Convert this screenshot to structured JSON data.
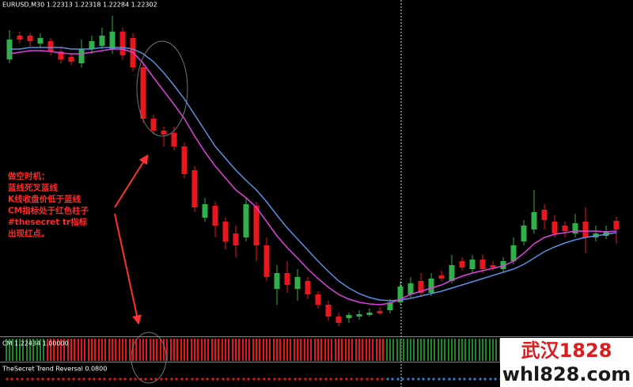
{
  "chart_data": {
    "type": "candlestick",
    "header": "EURUSD,M30 1.22313 1.22318 1.22284 1.22302",
    "ylim": [
      1.22162,
      1.22592
    ],
    "up_color": "#2fb04a",
    "down_color": "#e8161d",
    "open": [
      1.22517,
      1.22547,
      1.22547,
      1.22537,
      1.2254,
      1.22527,
      1.2252,
      1.22512,
      1.2253,
      1.22534,
      1.2253,
      1.22552,
      1.22544,
      1.22507,
      1.22442,
      1.22427,
      1.22424,
      1.22407,
      1.22377,
      1.22317,
      1.22332,
      1.22312,
      1.22297,
      1.22292,
      1.22332,
      1.22282,
      1.22227,
      1.22247,
      1.22227,
      1.22237,
      1.2222,
      1.22207,
      1.22192,
      1.2219,
      1.22192,
      1.22194,
      1.22199,
      1.222,
      1.2221,
      1.2222,
      1.22237,
      1.22222,
      1.22244,
      1.22237,
      1.22262,
      1.22252,
      1.22264,
      1.22257,
      1.22252,
      1.22262,
      1.22287,
      1.22302,
      1.22327,
      1.22312,
      1.22307,
      1.22297,
      1.22312,
      1.22292,
      1.22294,
      1.22313
    ],
    "high": [
      1.22554,
      1.22552,
      1.2255,
      1.2255,
      1.22544,
      1.22532,
      1.22524,
      1.22542,
      1.22547,
      1.22557,
      1.22572,
      1.22557,
      1.2255,
      1.22512,
      1.22447,
      1.22432,
      1.22432,
      1.22412,
      1.22382,
      1.22342,
      1.22337,
      1.22317,
      1.22307,
      1.22342,
      1.22337,
      1.22292,
      1.22257,
      1.22262,
      1.22252,
      1.22242,
      1.22224,
      1.22212,
      1.22197,
      1.22197,
      1.222,
      1.22202,
      1.22204,
      1.22214,
      1.22237,
      1.22242,
      1.22247,
      1.22247,
      1.2225,
      1.2227,
      1.22267,
      1.2227,
      1.2227,
      1.22262,
      1.22267,
      1.22292,
      1.22314,
      1.22352,
      1.22334,
      1.2232,
      1.22312,
      1.22322,
      1.2233,
      1.22307,
      1.22307,
      1.22318
    ],
    "low": [
      1.22512,
      1.22537,
      1.22534,
      1.22532,
      1.22522,
      1.22512,
      1.2251,
      1.22507,
      1.22524,
      1.2253,
      1.22524,
      1.22517,
      1.22502,
      1.22437,
      1.22422,
      1.22407,
      1.22402,
      1.22367,
      1.22324,
      1.22312,
      1.22292,
      1.22277,
      1.22267,
      1.22287,
      1.22262,
      1.22237,
      1.22207,
      1.22222,
      1.22212,
      1.22214,
      1.22202,
      1.22187,
      1.2218,
      1.22184,
      1.22188,
      1.22192,
      1.22194,
      1.22196,
      1.22207,
      1.22216,
      1.22217,
      1.22218,
      1.22236,
      1.22234,
      1.2225,
      1.22248,
      1.22247,
      1.2225,
      1.22249,
      1.22258,
      1.22282,
      1.22297,
      1.22302,
      1.22292,
      1.22292,
      1.22292,
      1.22272,
      1.22287,
      1.2229,
      1.22284
    ],
    "close": [
      1.22542,
      1.22542,
      1.2254,
      1.22544,
      1.22527,
      1.22517,
      1.22514,
      1.2253,
      1.2254,
      1.22547,
      1.22552,
      1.22522,
      1.22507,
      1.22442,
      1.22427,
      1.22422,
      1.22407,
      1.22372,
      1.2233,
      1.22334,
      1.22307,
      1.22287,
      1.22282,
      1.22334,
      1.22282,
      1.22242,
      1.22247,
      1.22232,
      1.22242,
      1.2222,
      1.22207,
      1.22192,
      1.22184,
      1.22194,
      1.22195,
      1.22197,
      1.22196,
      1.2221,
      1.2223,
      1.22234,
      1.22222,
      1.2224,
      1.2224,
      1.22257,
      1.22254,
      1.22264,
      1.22252,
      1.22254,
      1.22262,
      1.22282,
      1.22307,
      1.22324,
      1.22314,
      1.22297,
      1.223,
      1.2231,
      1.22292,
      1.22297,
      1.223,
      1.22302
    ],
    "series": [
      {
        "color": "#5b8fe0",
        "values": [
          1.2253,
          1.2253,
          1.22532,
          1.22532,
          1.22532,
          1.22532,
          1.2253,
          1.2253,
          1.2253,
          1.22532,
          1.22532,
          1.22532,
          1.2253,
          1.22524,
          1.22514,
          1.225,
          1.22484,
          1.22467,
          1.22447,
          1.22427,
          1.22407,
          1.22392,
          1.22377,
          1.22364,
          1.22352,
          1.22337,
          1.2232,
          1.22304,
          1.2229,
          1.22276,
          1.22262,
          1.22249,
          1.22237,
          1.22228,
          1.22221,
          1.22216,
          1.22213,
          1.22212,
          1.22213,
          1.22215,
          1.22218,
          1.22221,
          1.22224,
          1.22228,
          1.22232,
          1.22236,
          1.2224,
          1.22244,
          1.22248,
          1.22252,
          1.22258,
          1.22266,
          1.22274,
          1.2228,
          1.22285,
          1.22289,
          1.22292,
          1.22294,
          1.22296,
          1.22298
        ]
      },
      {
        "color": "#e040e0",
        "values": [
          1.22524,
          1.22526,
          1.22528,
          1.22528,
          1.22527,
          1.22525,
          1.22524,
          1.22524,
          1.22526,
          1.22528,
          1.2253,
          1.2253,
          1.22526,
          1.22512,
          1.22494,
          1.22477,
          1.2246,
          1.22442,
          1.2242,
          1.224,
          1.22382,
          1.22367,
          1.22352,
          1.22342,
          1.2233,
          1.22312,
          1.22294,
          1.22279,
          1.22266,
          1.22252,
          1.2224,
          1.22229,
          1.2222,
          1.22214,
          1.2221,
          1.22208,
          1.22207,
          1.22209,
          1.22214,
          1.2222,
          1.22224,
          1.22228,
          1.22232,
          1.22238,
          1.22243,
          1.22247,
          1.2225,
          1.22253,
          1.22256,
          1.22262,
          1.22272,
          1.22284,
          1.22292,
          1.22296,
          1.22298,
          1.223,
          1.223,
          1.223,
          1.22299,
          1.223
        ]
      }
    ],
    "annotations": [
      "做空时机：",
      "蓝线死叉蓝线",
      "K线收盘价低于蓝线",
      "CM指标处于红色柱子",
      "#thesecret tr指标",
      "出现红点。"
    ],
    "cm": {
      "label": "CM 1.22434 1.00000",
      "ylim": [
        0,
        1
      ],
      "values": [
        1,
        1,
        1,
        1,
        1,
        1,
        1,
        1,
        1,
        1,
        1,
        1,
        1,
        1,
        1,
        1,
        1,
        1,
        1,
        1,
        1,
        1,
        1,
        1,
        1,
        1,
        1,
        1,
        1,
        1,
        1,
        1,
        1,
        1,
        1,
        1,
        1,
        1,
        1,
        1,
        1,
        1,
        1,
        1,
        1,
        1,
        1,
        1,
        1,
        1,
        1,
        1,
        1,
        1,
        1,
        1,
        1,
        1,
        1,
        1
      ],
      "colors": [
        "#1c8a2a",
        "#1c8a2a",
        "#1c8a2a",
        "#1c8a2a",
        "#e8161d",
        "#e8161d",
        "#e8161d",
        "#e8161d",
        "#e8161d",
        "#e8161d",
        "#e8161d",
        "#e8161d",
        "#e8161d",
        "#e8161d",
        "#e8161d",
        "#e8161d",
        "#e8161d",
        "#e8161d",
        "#e8161d",
        "#e8161d",
        "#e8161d",
        "#e8161d",
        "#e8161d",
        "#e8161d",
        "#e8161d",
        "#e8161d",
        "#e8161d",
        "#e8161d",
        "#e8161d",
        "#e8161d",
        "#e8161d",
        "#e8161d",
        "#e8161d",
        "#e8161d",
        "#e8161d",
        "#e8161d",
        "#e8161d",
        "#1c8a2a",
        "#1c8a2a",
        "#1c8a2a",
        "#1c8a2a",
        "#1c8a2a",
        "#1c8a2a",
        "#1c8a2a",
        "#1c8a2a",
        "#1c8a2a",
        "#1c8a2a",
        "#1c8a2a",
        "#1c8a2a",
        "#1c8a2a",
        "#1c8a2a",
        "#1c8a2a",
        "#1c8a2a",
        "#1c8a2a",
        "#1c8a2a",
        "#1c8a2a",
        "#1c8a2a",
        "#1c8a2a",
        "#1c8a2a",
        "#1c8a2a"
      ]
    },
    "trend_reversal": {
      "label": "TheSecret Trend Reversal 0.0800",
      "colors": [
        "#e8161d",
        "#e8161d",
        "#e8161d",
        "#e8161d",
        "#e8161d",
        "#e8161d",
        "#e8161d",
        "#e8161d",
        "#e8161d",
        "#e8161d",
        "#e8161d",
        "#e8161d",
        "#e8161d",
        "#e8161d",
        "#e8161d",
        "#e8161d",
        "#e8161d",
        "#e8161d",
        "#e8161d",
        "#e8161d",
        "#e8161d",
        "#e8161d",
        "#e8161d",
        "#e8161d",
        "#e8161d",
        "#e8161d",
        "#e8161d",
        "#e8161d",
        "#e8161d",
        "#e8161d",
        "#e8161d",
        "#e8161d",
        "#e8161d",
        "#e8161d",
        "#e8161d",
        "#e8161d",
        "#e8161d",
        "#3a7bd5",
        "#3a7bd5",
        "#3a7bd5",
        "#3a7bd5",
        "#3a7bd5",
        "#3a7bd5",
        "#3a7bd5",
        "#3a7bd5",
        "#3a7bd5",
        "#3a7bd5",
        "#3a7bd5",
        "#3a7bd5",
        "#3a7bd5",
        "#3a7bd5",
        "#3a7bd5",
        "#3a7bd5",
        "#3a7bd5",
        "#3a7bd5",
        "#3a7bd5",
        "#3a7bd5",
        "#3a7bd5",
        "#3a7bd5",
        "#3a7bd5"
      ]
    },
    "watermark": [
      "武汉1828",
      "whl828.com"
    ]
  }
}
